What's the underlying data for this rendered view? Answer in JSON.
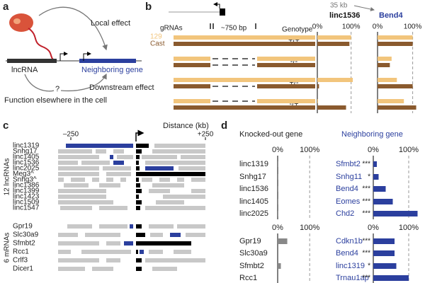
{
  "panel_a": {
    "label": "a",
    "local_effect": "Local effect",
    "lncrna": "lncRNA",
    "neighboring_gene": "Neighboring gene",
    "question": "?",
    "downstream_effect": "Downstream effect",
    "function_elsewhere": "Function elsewhere in the cell"
  },
  "panel_b": {
    "label": "b",
    "scale": "35 kb",
    "grnas": "gRNAs",
    "fragment": "~750 bp",
    "genotype_header": "Genotype",
    "alleles": [
      {
        "name": "129",
        "color": "#f2c57c"
      },
      {
        "name": "Cast",
        "color": "#8a5a2e"
      }
    ],
    "genotypes": [
      "+/+",
      "-/-",
      "+/-",
      "-/+"
    ],
    "charts": [
      {
        "title": "linc1536",
        "color": "#111111",
        "xlim": [
          0,
          130
        ],
        "xticks": [
          {
            "value": 0,
            "label": "0%"
          },
          {
            "value": 100,
            "label": "100%"
          }
        ],
        "series": [
          {
            "values": [
              100,
              0,
              105,
              2
            ]
          },
          {
            "values": [
              95,
              0,
              5,
              85
            ]
          }
        ]
      },
      {
        "title": "Bend4",
        "color": "#2b3f9e",
        "xlim": [
          0,
          125
        ],
        "xticks": [
          {
            "value": 0,
            "label": "0%"
          },
          {
            "value": 100,
            "label": "100%"
          }
        ],
        "series": [
          {
            "values": [
              100,
              40,
              55,
              75
            ]
          },
          {
            "values": [
              100,
              35,
              100,
              110
            ]
          }
        ]
      }
    ]
  },
  "panel_c": {
    "label": "c",
    "axis_title": "Distance (kb)",
    "ticks": [
      "–250",
      "+250"
    ],
    "groups": [
      {
        "label": "12 lncRNAs",
        "genes": [
          "linc1319",
          "Snhg17",
          "linc1405",
          "linc1536",
          "linc2025",
          "Meg3^",
          "Snhg3^",
          "linc1386",
          "linc1399",
          "linc1423",
          "linc1509",
          "linc1547"
        ]
      },
      {
        "label": "6 mRNAs",
        "genes": [
          "Gpr19",
          "Slc30a9",
          "Sfmbt2",
          "Rcc1",
          "Crlf3",
          "Dicer1"
        ]
      }
    ]
  },
  "panel_d": {
    "label": "d",
    "knocked_out_title": "Knocked-out gene",
    "neighbor_title": "Neighboring gene",
    "xlim": [
      0,
      135
    ],
    "xticks": [
      {
        "value": 0,
        "label": "0%"
      },
      {
        "value": 100,
        "label": "100%"
      }
    ],
    "groups": [
      {
        "genes": [
          "linc1319",
          "Snhg17",
          "linc1536",
          "linc1405",
          "linc2025"
        ],
        "knockout_values": [
          2,
          2,
          2,
          2,
          2
        ],
        "neighbors": [
          "Sfmbt2",
          "Snhg11",
          "Bend4",
          "Eomes",
          "Chd2"
        ],
        "neighbor_values": [
          10,
          15,
          35,
          55,
          125
        ],
        "significance": [
          "***",
          "*",
          "***",
          "***",
          "***"
        ]
      },
      {
        "genes": [
          "Gpr19",
          "Slc30a9",
          "Sfmbt2",
          "Rcc1"
        ],
        "knockout_values": [
          30,
          0,
          10,
          0
        ],
        "neighbors": [
          "Cdkn1b",
          "Bend4",
          "linc1319",
          "Trnau1ap"
        ],
        "neighbor_values": [
          60,
          60,
          65,
          100
        ],
        "significance": [
          "***",
          "***",
          "*",
          "***"
        ]
      }
    ]
  }
}
